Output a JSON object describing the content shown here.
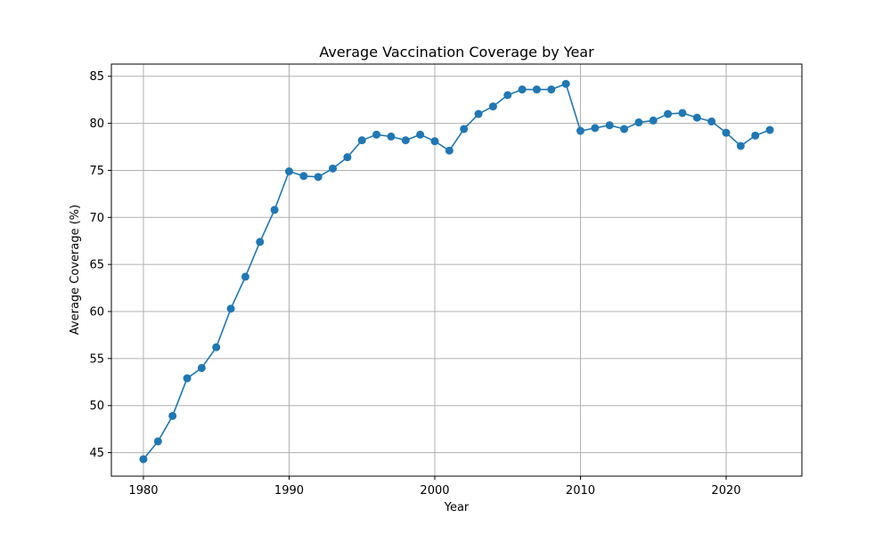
{
  "chart_data": {
    "type": "line",
    "title": "Average Vaccination Coverage by Year",
    "xlabel": "Year",
    "ylabel": "Average Coverage (%)",
    "xlim": [
      1977.8,
      2025.2
    ],
    "ylim": [
      42.5,
      86.3
    ],
    "xticks": [
      1980,
      1990,
      2000,
      2010,
      2020
    ],
    "yticks": [
      45,
      50,
      55,
      60,
      65,
      70,
      75,
      80,
      85
    ],
    "grid": true,
    "marker": "circle",
    "line_color": "#1f77b4",
    "x": [
      1980,
      1981,
      1982,
      1983,
      1984,
      1985,
      1986,
      1987,
      1988,
      1989,
      1990,
      1991,
      1992,
      1993,
      1994,
      1995,
      1996,
      1997,
      1998,
      1999,
      2000,
      2001,
      2002,
      2003,
      2004,
      2005,
      2006,
      2007,
      2008,
      2009,
      2010,
      2011,
      2012,
      2013,
      2014,
      2015,
      2016,
      2017,
      2018,
      2019,
      2020,
      2021,
      2022,
      2023
    ],
    "y": [
      44.3,
      46.2,
      48.9,
      52.9,
      54.0,
      56.2,
      60.3,
      63.7,
      67.4,
      70.8,
      74.9,
      74.4,
      74.3,
      75.2,
      76.4,
      78.2,
      78.8,
      78.6,
      78.2,
      78.8,
      78.1,
      77.1,
      79.4,
      81.0,
      81.8,
      83.0,
      83.6,
      83.6,
      83.6,
      84.2,
      79.2,
      79.5,
      79.8,
      79.4,
      80.1,
      80.3,
      81.0,
      81.1,
      80.6,
      80.2,
      79.0,
      77.6,
      78.7,
      79.3
    ]
  }
}
